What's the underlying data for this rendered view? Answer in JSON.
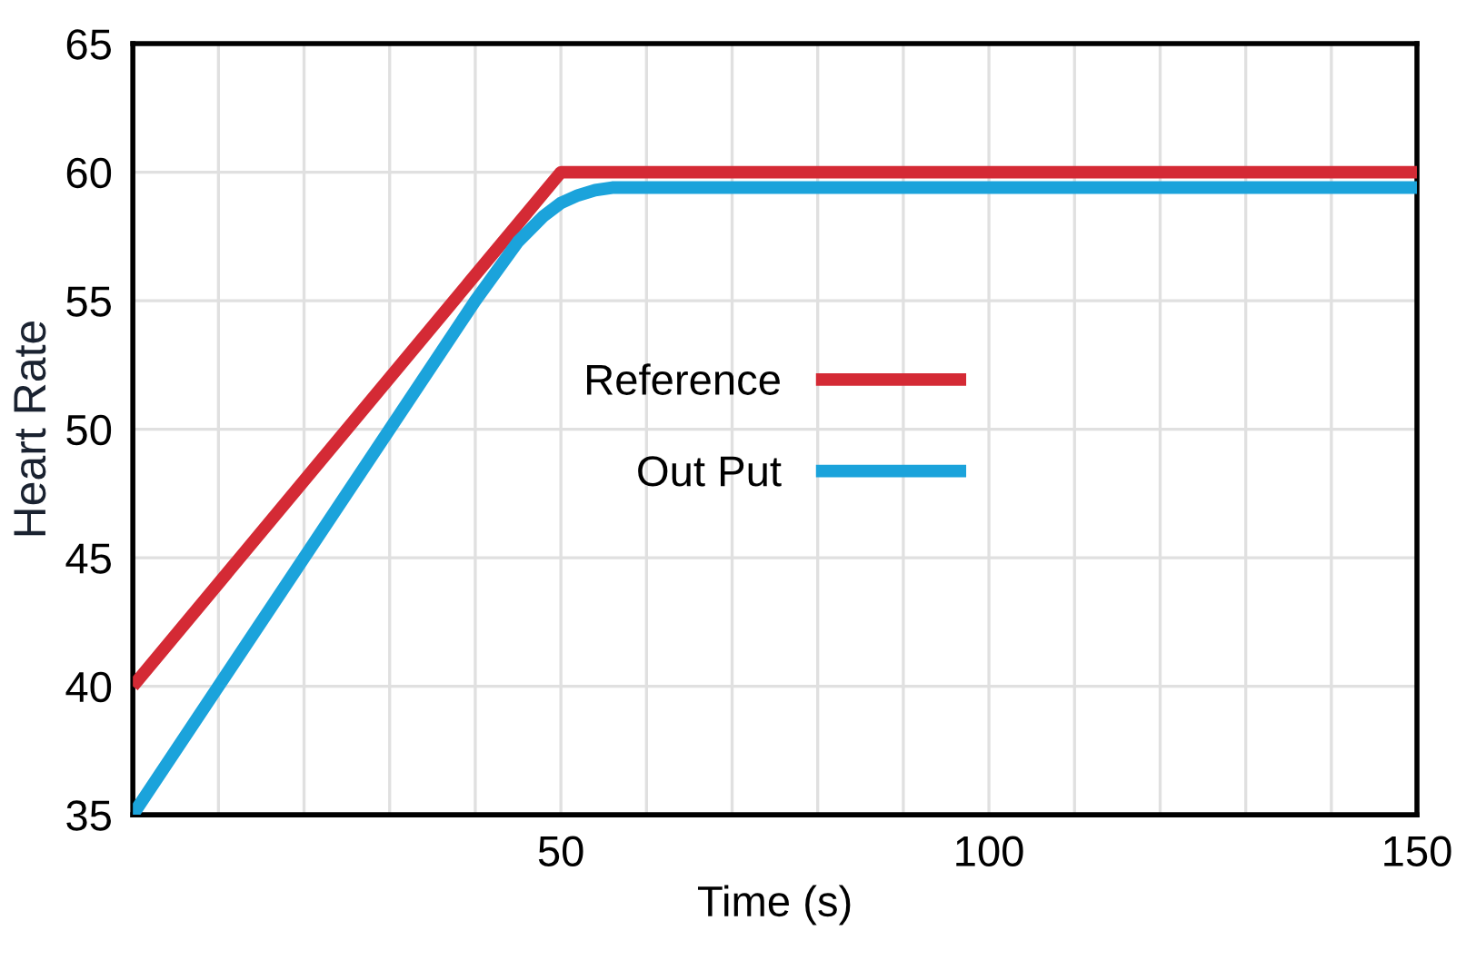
{
  "chart_data": {
    "type": "line",
    "xlabel": "Time (s)",
    "ylabel": "Heart Rate",
    "xlim": [
      0,
      150
    ],
    "ylim": [
      35,
      65
    ],
    "xticks": [
      {
        "value": 10,
        "label": null
      },
      {
        "value": 20,
        "label": null
      },
      {
        "value": 30,
        "label": null
      },
      {
        "value": 40,
        "label": null
      },
      50,
      {
        "value": 60,
        "label": null
      },
      {
        "value": 70,
        "label": null
      },
      {
        "value": 80,
        "label": null
      },
      {
        "value": 90,
        "label": null
      },
      100,
      {
        "value": 110,
        "label": null
      },
      {
        "value": 120,
        "label": null
      },
      {
        "value": 130,
        "label": null
      },
      {
        "value": 140,
        "label": null
      },
      150
    ],
    "yticks": [
      35,
      40,
      45,
      50,
      55,
      60,
      65
    ],
    "grid": true,
    "legend": "center",
    "line_style": "solid",
    "series": [
      {
        "name": "Reference",
        "color": "#d42a35",
        "x": [
          0,
          50,
          150
        ],
        "values": [
          40,
          60,
          60
        ]
      },
      {
        "name": "Out Put",
        "color": "#1ba3db",
        "x": [
          0,
          10,
          20,
          30,
          40,
          45,
          48,
          50,
          52,
          54,
          56,
          60,
          150
        ],
        "values": [
          35,
          40,
          45,
          50,
          55,
          57.3,
          58.3,
          58.8,
          59.1,
          59.3,
          59.4,
          59.4,
          59.4
        ]
      }
    ]
  }
}
